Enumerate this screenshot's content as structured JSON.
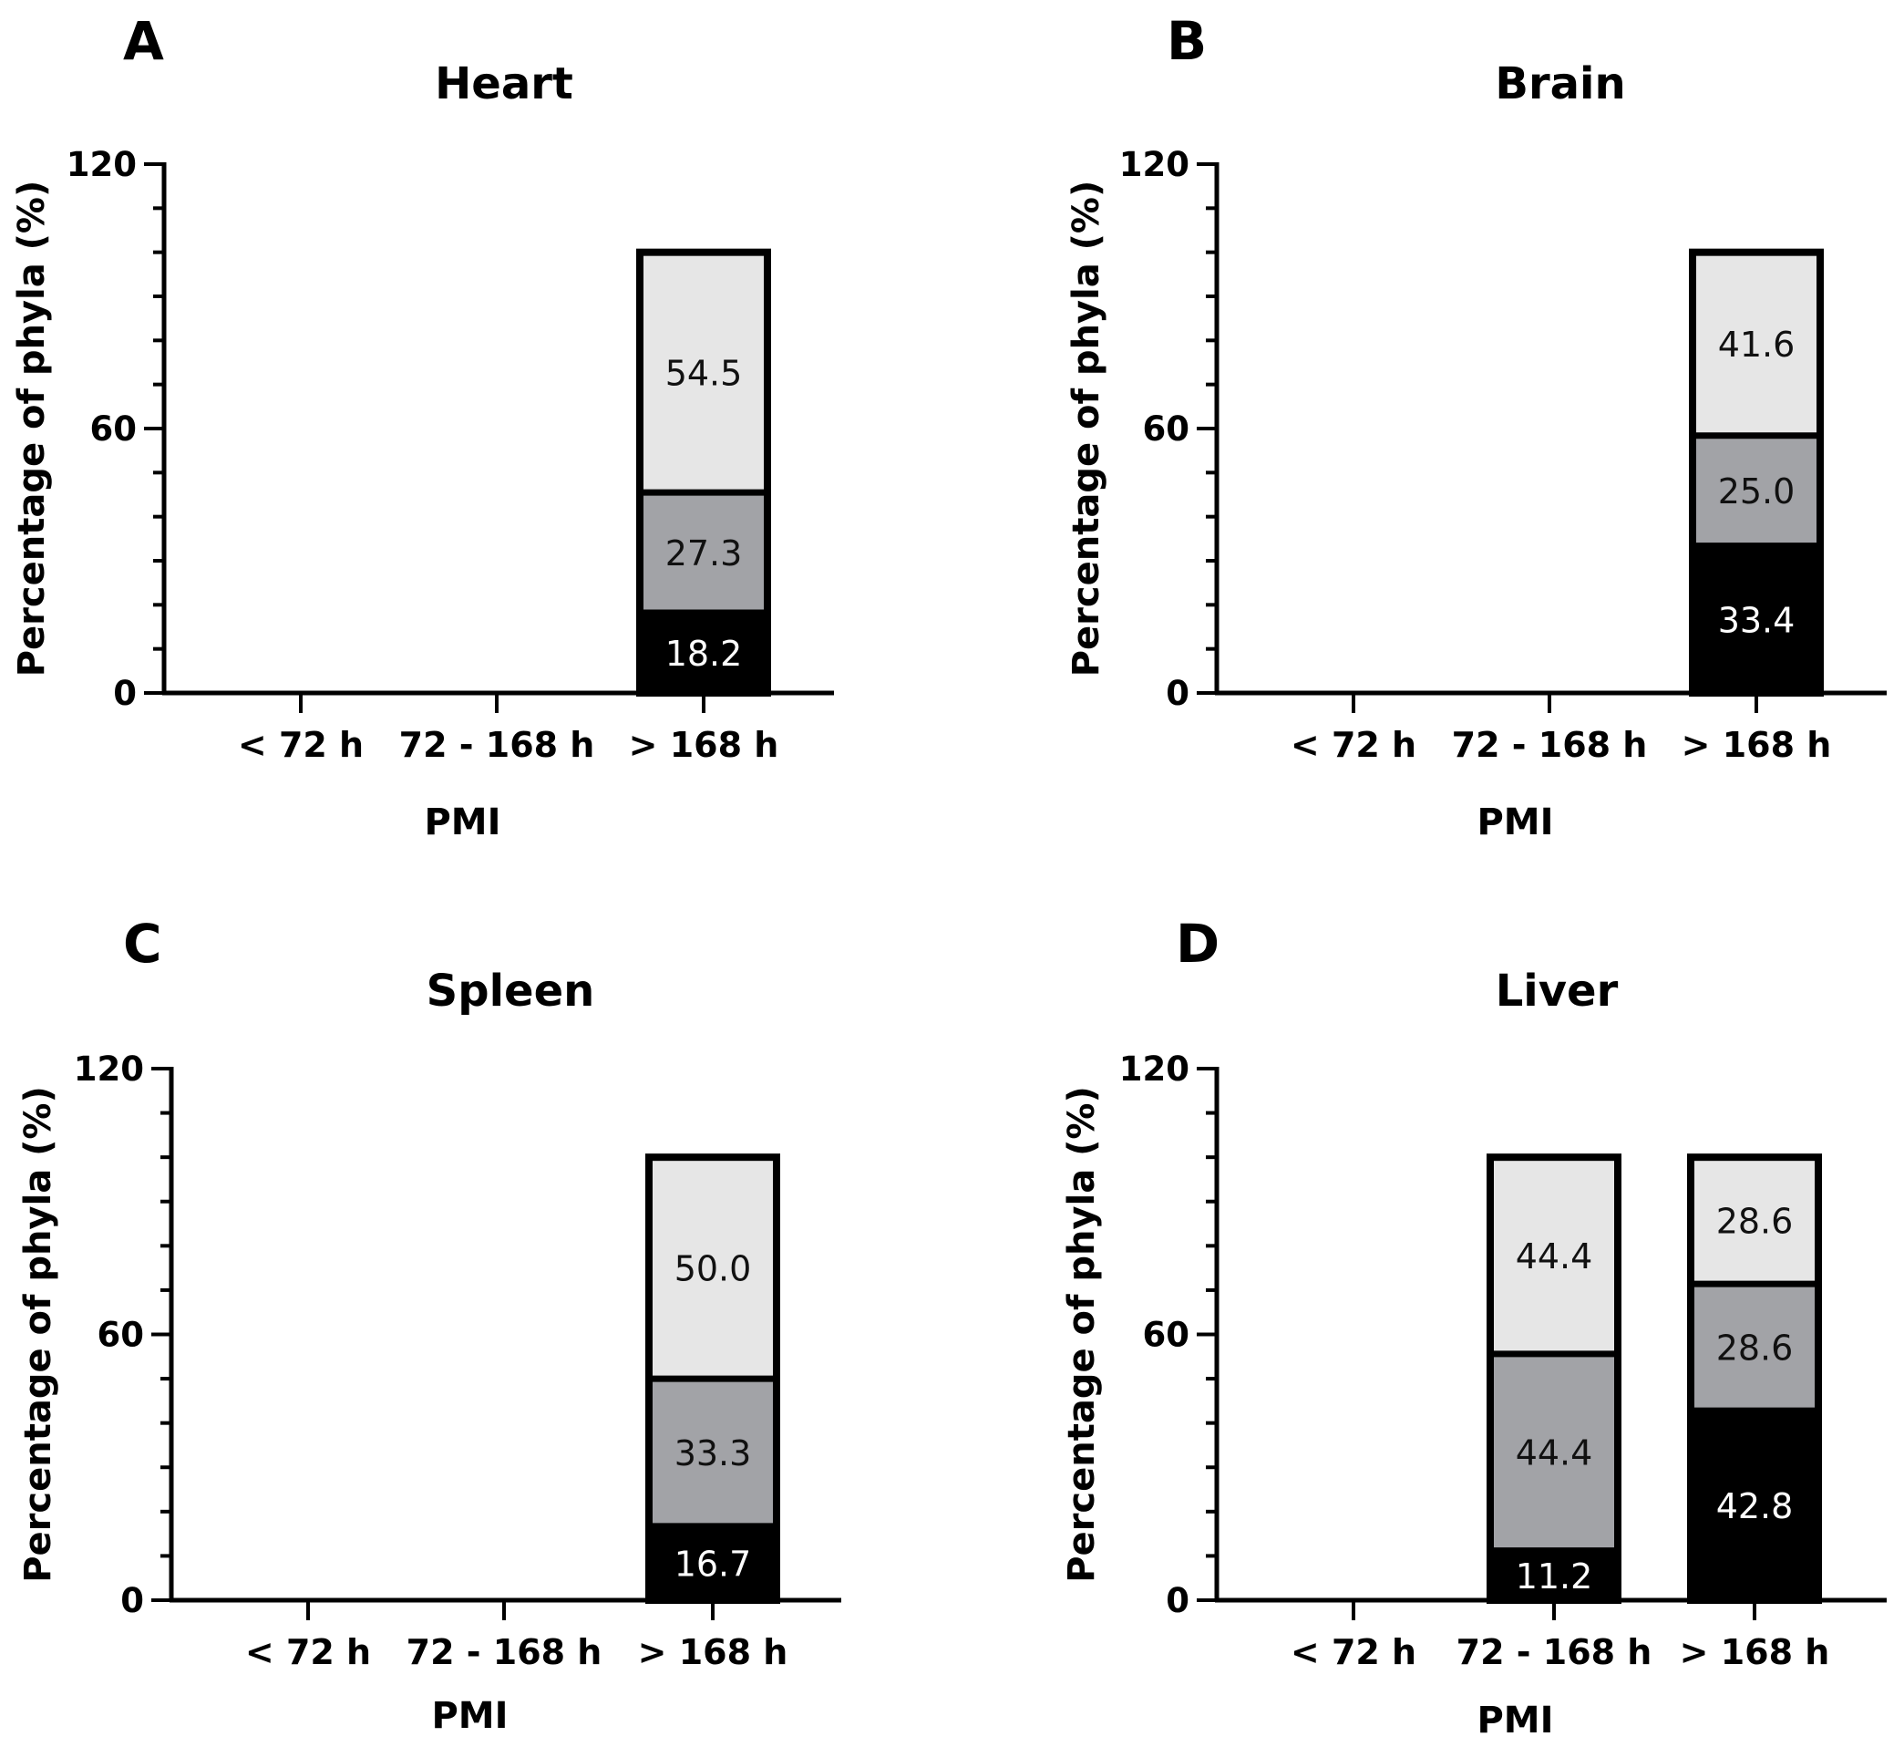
{
  "chart_data": [
    {
      "type": "bar",
      "stacked": true,
      "panel": "A",
      "title": "Heart",
      "xlabel": "PMI",
      "ylabel": "Percentage of phyla (%)",
      "ylim": [
        0,
        120
      ],
      "yticks": [
        "0",
        "60",
        "120"
      ],
      "categories": [
        "< 72 h",
        "72 - 168 h",
        "> 168 h"
      ],
      "series": [
        {
          "name": "black",
          "color": "#000000",
          "label_color": "#ffffff",
          "values": [
            null,
            null,
            18.2
          ],
          "labels": [
            "",
            "",
            "18.2"
          ]
        },
        {
          "name": "gray",
          "color": "#a2a3a7",
          "label_color": "#111111",
          "values": [
            null,
            null,
            27.3
          ],
          "labels": [
            "",
            "",
            "27.3"
          ]
        },
        {
          "name": "light",
          "color": "#e6e6e6",
          "label_color": "#111111",
          "values": [
            null,
            null,
            54.5
          ],
          "labels": [
            "",
            "",
            "54.5"
          ]
        }
      ]
    },
    {
      "type": "bar",
      "stacked": true,
      "panel": "B",
      "title": "Brain",
      "xlabel": "PMI",
      "ylabel": "Percentage of phyla (%)",
      "ylim": [
        0,
        120
      ],
      "yticks": [
        "0",
        "60",
        "120"
      ],
      "categories": [
        "< 72 h",
        "72 - 168 h",
        "> 168 h"
      ],
      "series": [
        {
          "name": "black",
          "color": "#000000",
          "label_color": "#ffffff",
          "values": [
            null,
            null,
            33.4
          ],
          "labels": [
            "",
            "",
            "33.4"
          ]
        },
        {
          "name": "gray",
          "color": "#a2a3a7",
          "label_color": "#111111",
          "values": [
            null,
            null,
            25.0
          ],
          "labels": [
            "",
            "",
            "25.0"
          ]
        },
        {
          "name": "light",
          "color": "#e6e6e6",
          "label_color": "#111111",
          "values": [
            null,
            null,
            41.6
          ],
          "labels": [
            "",
            "",
            "41.6"
          ]
        }
      ]
    },
    {
      "type": "bar",
      "stacked": true,
      "panel": "C",
      "title": "Spleen",
      "xlabel": "PMI",
      "ylabel": "Percentage of phyla (%)",
      "ylim": [
        0,
        120
      ],
      "yticks": [
        "0",
        "60",
        "120"
      ],
      "categories": [
        "< 72 h",
        "72 - 168 h",
        "> 168 h"
      ],
      "series": [
        {
          "name": "black",
          "color": "#000000",
          "label_color": "#ffffff",
          "values": [
            null,
            null,
            16.7
          ],
          "labels": [
            "",
            "",
            "16.7"
          ]
        },
        {
          "name": "gray",
          "color": "#a2a3a7",
          "label_color": "#111111",
          "values": [
            null,
            null,
            33.3
          ],
          "labels": [
            "",
            "",
            "33.3"
          ]
        },
        {
          "name": "light",
          "color": "#e6e6e6",
          "label_color": "#111111",
          "values": [
            null,
            null,
            50.0
          ],
          "labels": [
            "",
            "",
            "50.0"
          ]
        }
      ]
    },
    {
      "type": "bar",
      "stacked": true,
      "panel": "D",
      "title": "Liver",
      "xlabel": "PMI",
      "ylabel": "Percentage of phyla (%)",
      "ylim": [
        0,
        120
      ],
      "yticks": [
        "0",
        "60",
        "120"
      ],
      "categories": [
        "< 72 h",
        "72 - 168 h",
        "> 168 h"
      ],
      "series": [
        {
          "name": "black",
          "color": "#000000",
          "label_color": "#ffffff",
          "values": [
            null,
            11.2,
            42.8
          ],
          "labels": [
            "",
            "11.2",
            "42.8"
          ]
        },
        {
          "name": "gray",
          "color": "#a2a3a7",
          "label_color": "#111111",
          "values": [
            null,
            44.4,
            28.6
          ],
          "labels": [
            "",
            "44.4",
            "28.6"
          ]
        },
        {
          "name": "light",
          "color": "#e6e6e6",
          "label_color": "#111111",
          "values": [
            null,
            44.4,
            28.6
          ],
          "labels": [
            "",
            "44.4",
            "28.6"
          ]
        }
      ]
    }
  ]
}
